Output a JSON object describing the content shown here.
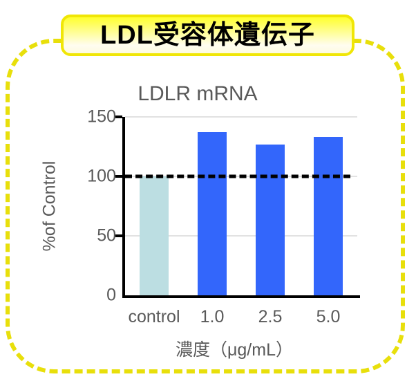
{
  "header": {
    "title": "LDL受容体遺伝子"
  },
  "theme": {
    "frame_yellow": "#e8df0b",
    "header_border_yellow": "#f0e606",
    "header_gradient_top": "#ffff2e",
    "header_gradient_bottom": "#fffdf0",
    "bar_blue": "#3366fb",
    "bar_control": "#bcdee2",
    "axis_black": "#000000",
    "text_gray": "#595959",
    "gridline_gray": "#e2e2e2",
    "background": "#ffffff"
  },
  "chart_data": {
    "type": "bar",
    "title": "LDLR mRNA",
    "categories": [
      "control",
      "1.0",
      "2.5",
      "5.0"
    ],
    "values": [
      100,
      137,
      127,
      133
    ],
    "bar_colors": [
      "#bcdee2",
      "#3366fb",
      "#3366fb",
      "#3366fb"
    ],
    "xlabel": "濃度（μg/mL）",
    "ylabel": "%of Control",
    "ylim": [
      0,
      150
    ],
    "yticks": [
      0,
      50,
      100,
      150
    ],
    "reference_line": 100,
    "grid": true,
    "legend": "none"
  }
}
